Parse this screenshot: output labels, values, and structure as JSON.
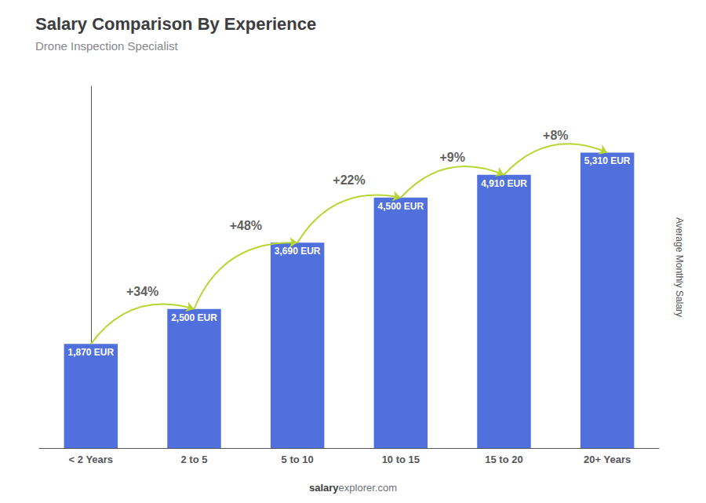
{
  "chart_data": {
    "type": "bar",
    "title": "Salary Comparison By Experience",
    "subtitle": "Drone Inspection Specialist",
    "categories": [
      "< 2 Years",
      "2 to 5",
      "5 to 10",
      "10 to 15",
      "15 to 20",
      "20+ Years"
    ],
    "values": [
      1870,
      2500,
      3690,
      4500,
      4910,
      5310
    ],
    "value_labels": [
      "1,870 EUR",
      "2,500 EUR",
      "3,690 EUR",
      "4,500 EUR",
      "4,910 EUR",
      "5,310 EUR"
    ],
    "data_labels": true,
    "ylabel": "Average Monthly Salary",
    "ylim": [
      0,
      6500
    ],
    "yticks": [],
    "tick_labels": "x",
    "grid": false,
    "annotations": [
      {
        "text": "+34%",
        "from": "< 2 Years",
        "to": "2 to 5"
      },
      {
        "text": "+48%",
        "from": "2 to 5",
        "to": "5 to 10"
      },
      {
        "text": "+22%",
        "from": "5 to 10",
        "to": "10 to 15"
      },
      {
        "text": "+9%",
        "from": "10 to 15",
        "to": "15 to 20"
      },
      {
        "text": "+8%",
        "from": "15 to 20",
        "to": "20+ Years"
      }
    ],
    "watermark": [
      "salary",
      "explorer.com"
    ]
  }
}
